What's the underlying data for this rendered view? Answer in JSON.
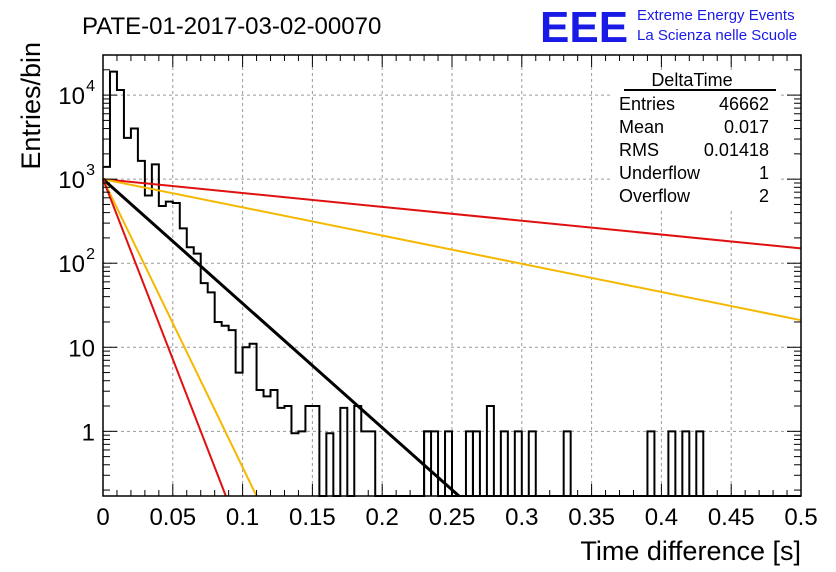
{
  "header": {
    "run_title": "PATE-01-2017-03-02-00070",
    "logo_letters": "EEE",
    "logo_line1": "Extreme Energy Events",
    "logo_line2": "La Scienza nelle Scuole",
    "logo_color": "#1a1ae6"
  },
  "stats_box": {
    "title": "DeltaTime",
    "rows": [
      {
        "label": "Entries",
        "value": "46662"
      },
      {
        "label": "Mean",
        "value": "0.017"
      },
      {
        "label": "RMS",
        "value": "0.01418"
      },
      {
        "label": "Underflow",
        "value": "1"
      },
      {
        "label": "Overflow",
        "value": "2"
      }
    ]
  },
  "chart_data": {
    "type": "histogram",
    "xlabel": "Time difference [s]",
    "ylabel": "Entries/bin",
    "xlim": [
      0,
      0.5
    ],
    "ylim": [
      0.17,
      30000
    ],
    "yscale": "log",
    "grid": true,
    "x_ticks": [
      {
        "v": 0,
        "label": "0"
      },
      {
        "v": 0.05,
        "label": "0.05"
      },
      {
        "v": 0.1,
        "label": "0.1"
      },
      {
        "v": 0.15,
        "label": "0.15"
      },
      {
        "v": 0.2,
        "label": "0.2"
      },
      {
        "v": 0.25,
        "label": "0.25"
      },
      {
        "v": 0.3,
        "label": "0.3"
      },
      {
        "v": 0.35,
        "label": "0.35"
      },
      {
        "v": 0.4,
        "label": "0.4"
      },
      {
        "v": 0.45,
        "label": "0.45"
      },
      {
        "v": 0.5,
        "label": "0.5"
      }
    ],
    "y_ticks": [
      {
        "v": 1,
        "label": "1"
      },
      {
        "v": 10,
        "label": "10"
      },
      {
        "v": 100,
        "label": "10",
        "exp": "2"
      },
      {
        "v": 1000,
        "label": "10",
        "exp": "3"
      },
      {
        "v": 10000,
        "label": "10",
        "exp": "4"
      }
    ],
    "bin_width": 0.005,
    "bin_counts": [
      1400,
      19000,
      11500,
      3100,
      4000,
      1650,
      640,
      1500,
      480,
      540,
      520,
      260,
      155,
      130,
      58,
      45,
      20,
      18,
      16,
      5,
      10,
      11,
      3.1,
      2.6,
      3.1,
      1.9,
      2.0,
      0.95,
      1.0,
      2.0,
      2.0,
      0,
      0.95,
      0,
      1.9,
      0,
      2.0,
      1.0,
      1.0,
      0,
      0,
      0,
      0,
      0,
      0,
      0,
      1.0,
      1.0,
      0,
      0,
      0,
      0,
      0,
      0,
      0,
      0,
      0,
      0,
      0,
      0,
      0,
      0,
      0,
      0,
      0,
      0,
      0,
      0,
      0,
      0,
      0,
      0,
      0,
      0,
      0,
      0,
      0,
      0,
      0,
      0,
      0,
      0,
      0,
      0,
      0,
      0,
      0,
      0,
      0,
      0,
      0,
      0,
      0,
      0,
      0,
      0,
      0,
      0,
      0,
      0
    ],
    "extra_bins": [
      {
        "x0": 0.23,
        "count": 1
      },
      {
        "x0": 0.245,
        "count": 1
      },
      {
        "x0": 0.26,
        "count": 1
      },
      {
        "x0": 0.265,
        "count": 1
      },
      {
        "x0": 0.275,
        "count": 2
      },
      {
        "x0": 0.285,
        "count": 1
      },
      {
        "x0": 0.295,
        "count": 1
      },
      {
        "x0": 0.305,
        "count": 1
      },
      {
        "x0": 0.33,
        "count": 1
      },
      {
        "x0": 0.39,
        "count": 1
      },
      {
        "x0": 0.405,
        "count": 1
      },
      {
        "x0": 0.415,
        "count": 1
      },
      {
        "x0": 0.425,
        "count": 1
      }
    ],
    "lines": [
      {
        "color": "#e01010",
        "width": 2.0,
        "points": [
          [
            0,
            1000
          ],
          [
            0.5,
            150
          ]
        ]
      },
      {
        "color": "#f5b800",
        "width": 2.0,
        "points": [
          [
            0,
            1000
          ],
          [
            0.5,
            21
          ]
        ]
      },
      {
        "color": "#000000",
        "width": 3.0,
        "points": [
          [
            0,
            1000
          ],
          [
            0.255,
            0.17
          ]
        ]
      },
      {
        "color": "#f5b800",
        "width": 2.0,
        "points": [
          [
            0,
            1000
          ],
          [
            0.11,
            0.17
          ]
        ]
      },
      {
        "color": "#e01010",
        "width": 2.0,
        "points": [
          [
            0,
            1000
          ],
          [
            0.088,
            0.17
          ]
        ]
      }
    ]
  }
}
